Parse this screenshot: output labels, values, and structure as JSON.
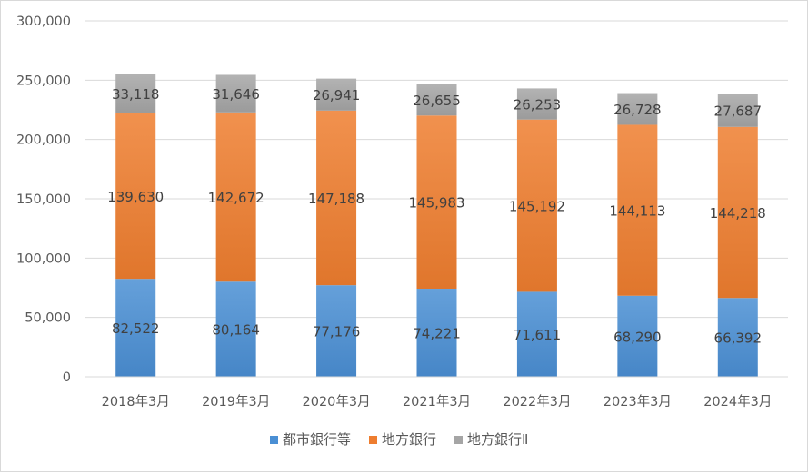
{
  "chart_data": {
    "type": "bar",
    "stacked": true,
    "categories": [
      "2018年3月",
      "2019年3月",
      "2020年3月",
      "2021年3月",
      "2022年3月",
      "2023年3月",
      "2024年3月"
    ],
    "series": [
      {
        "name": "都市銀行等",
        "color": "#4a8fd4",
        "values": [
          82522,
          80164,
          77176,
          74221,
          71611,
          68290,
          66392
        ]
      },
      {
        "name": "地方銀行",
        "color": "#ee7d2f",
        "values": [
          139630,
          142672,
          147188,
          145983,
          145192,
          144113,
          144218
        ]
      },
      {
        "name": "地方銀行Ⅱ",
        "color": "#a5a5a5",
        "values": [
          33118,
          31646,
          26941,
          26655,
          26253,
          26728,
          27687
        ]
      }
    ],
    "ylim": [
      0,
      300000
    ],
    "yticks": [
      0,
      50000,
      100000,
      150000,
      200000,
      250000,
      300000
    ],
    "ytick_labels": [
      "0",
      "50,000",
      "100,000",
      "150,000",
      "200,000",
      "250,000",
      "300,000"
    ],
    "grid": true,
    "legend_position": "bottom",
    "data_labels": true
  }
}
